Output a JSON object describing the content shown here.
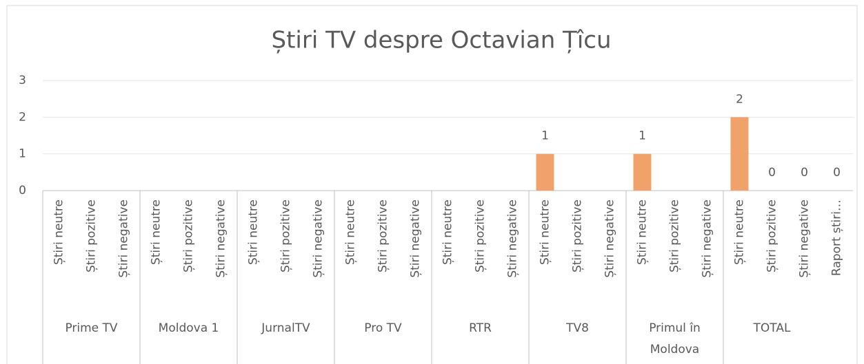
{
  "chart_data": {
    "type": "bar",
    "title": "Știri TV despre Octavian Țîcu",
    "groups": [
      {
        "name": "Prime TV",
        "categories": [
          "Știri neutre",
          "Știri pozitive",
          "Știri negative"
        ]
      },
      {
        "name": "Moldova 1",
        "categories": [
          "Știri neutre",
          "Știri pozitive",
          "Știri negative"
        ]
      },
      {
        "name": "JurnalTV",
        "categories": [
          "Știri neutre",
          "Știri pozitive",
          "Știri negative"
        ]
      },
      {
        "name": "Pro TV",
        "categories": [
          "Știri neutre",
          "Știri pozitive",
          "Știri negative"
        ]
      },
      {
        "name": "RTR",
        "categories": [
          "Știri neutre",
          "Știri pozitive",
          "Știri negative"
        ]
      },
      {
        "name": "TV8",
        "categories": [
          "Știri neutre",
          "Știri pozitive",
          "Știri negative"
        ]
      },
      {
        "name": "Primul în Moldova",
        "categories": [
          "Știri neutre",
          "Știri pozitive",
          "Știri negative"
        ]
      },
      {
        "name": "TOTAL",
        "categories": [
          "Știri neutre",
          "Știri pozitive",
          "Știri negative",
          "Raport știri…"
        ]
      }
    ],
    "values": [
      null,
      null,
      null,
      null,
      null,
      null,
      null,
      null,
      null,
      null,
      null,
      null,
      null,
      null,
      null,
      1,
      null,
      null,
      1,
      null,
      null,
      2,
      0,
      0,
      0
    ],
    "color": "#f1a26a",
    "ylim": [
      0,
      3
    ],
    "yticks": [
      0,
      1,
      2,
      3
    ],
    "grid": true
  }
}
